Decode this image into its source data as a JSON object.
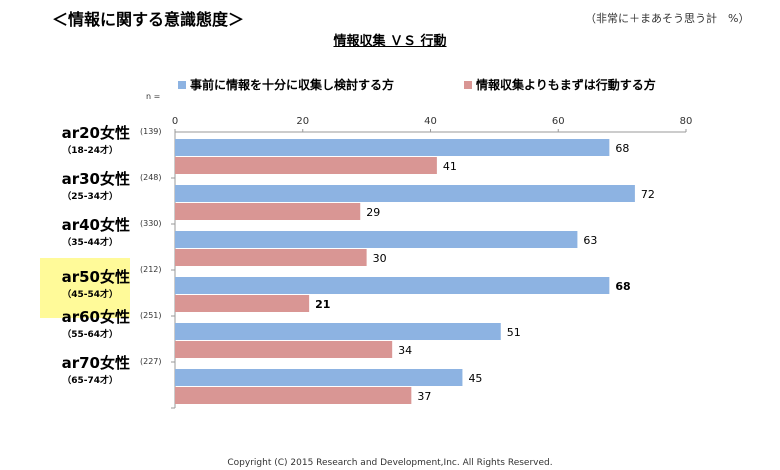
{
  "page": {
    "title": "＜情報に関する意識態度＞",
    "unit_note": "（非常に＋まあそう思う計　%）",
    "copyright": "Copyright (C) 2015 Research and Development,Inc. All Rights Reserved.",
    "n_label": "n ="
  },
  "colors": {
    "series1": "#8db3e2",
    "series2": "#d99694",
    "highlight": "#fffa99"
  },
  "chart_data": {
    "type": "bar",
    "orientation": "horizontal",
    "title": "情報収集 ＶＳ 行動",
    "xlim": [
      0,
      80
    ],
    "ticks": [
      "0",
      "20",
      "40",
      "60",
      "80"
    ],
    "legend_position": "top",
    "categories": [
      {
        "name": "ar20女性",
        "age": "（18-24才）",
        "n": "(139)"
      },
      {
        "name": "ar30女性",
        "age": "（25-34才）",
        "n": "(248)"
      },
      {
        "name": "ar40女性",
        "age": "（35-44才）",
        "n": "(330)"
      },
      {
        "name": "ar50女性",
        "age": "（45-54才）",
        "n": "(212)",
        "highlight": true
      },
      {
        "name": "ar60女性",
        "age": "（55-64才）",
        "n": "(251)"
      },
      {
        "name": "ar70女性",
        "age": "（65-74才）",
        "n": "(227)"
      }
    ],
    "series": [
      {
        "name": "事前に情報を十分に収集し検討する方",
        "values": [
          68,
          72,
          63,
          68,
          51,
          45
        ]
      },
      {
        "name": "情報収集よりもまずは行動する方",
        "values": [
          41,
          29,
          30,
          21,
          34,
          37
        ]
      }
    ]
  }
}
